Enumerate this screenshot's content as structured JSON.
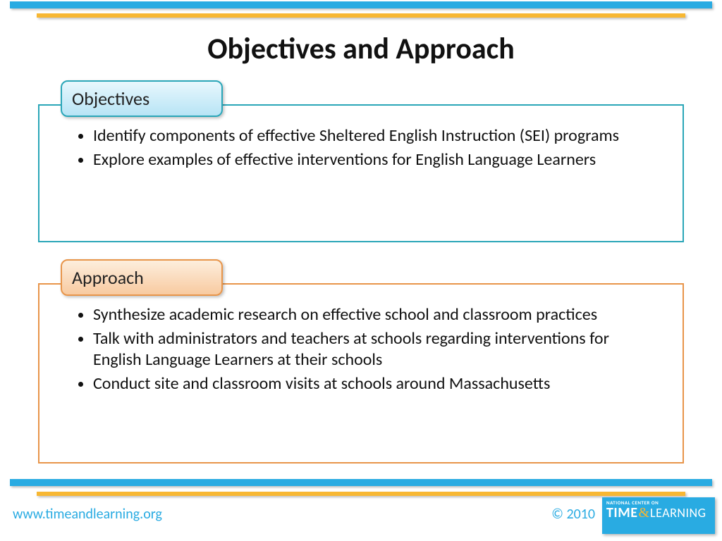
{
  "colors": {
    "blue_bar": "#29abe2",
    "orange_bar": "#f7b733",
    "objectives_border": "#2aa6b8",
    "approach_border": "#e8954a",
    "title_text": "#111111",
    "body_text": "#111111",
    "footer_text": "#29abe2",
    "objectives_tab_gradient": [
      "#e8f7fd",
      "#b8e4f5"
    ],
    "approach_tab_gradient": [
      "#fdeedd",
      "#f8caa0"
    ]
  },
  "title": "Objectives and Approach",
  "sections": {
    "objectives": {
      "label": "Objectives",
      "bullets": [
        "Identify components of effective Sheltered English Instruction (SEI) programs",
        "Explore examples of effective interventions for English Language Learners"
      ]
    },
    "approach": {
      "label": "Approach",
      "bullets": [
        "Synthesize academic research on effective school and classroom practices",
        "Talk with administrators and teachers at schools regarding interventions for English Language Learners at their schools",
        "Conduct site and classroom visits at schools around Massachusetts"
      ]
    }
  },
  "footer": {
    "url": "www.timeandlearning.org",
    "copyright": "© 2010"
  },
  "logo": {
    "top_line": "NATIONAL CENTER ON",
    "word1": "TIME",
    "amp": "&",
    "word2": "LEARNING"
  },
  "layout": {
    "slide_width": 1024,
    "slide_height": 768,
    "title_fontsize": 42,
    "tab_fontsize": 26,
    "bullet_fontsize": 24,
    "footer_fontsize": 20
  }
}
